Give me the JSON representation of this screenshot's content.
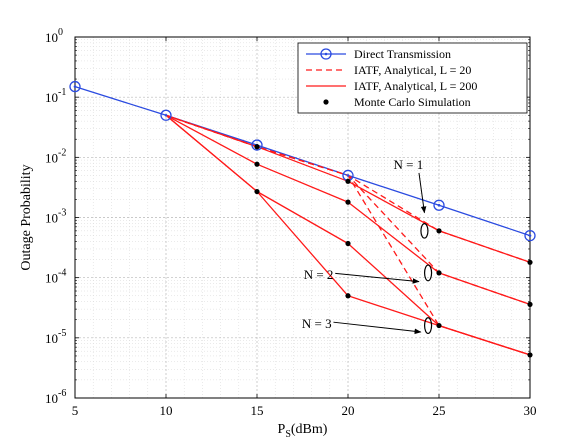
{
  "chart_data": {
    "type": "line",
    "title": "",
    "xlabel": "P",
    "xlabel_sub": "S",
    "xlabel_unit": "(dBm)",
    "ylabel": "Outage Probability",
    "x_ticks": [
      "5",
      "10",
      "15",
      "20",
      "25",
      "30"
    ],
    "y_ticks": [
      {
        "base": "10",
        "exp": "-6"
      },
      {
        "base": "10",
        "exp": "-5"
      },
      {
        "base": "10",
        "exp": "-4"
      },
      {
        "base": "10",
        "exp": "-3"
      },
      {
        "base": "10",
        "exp": "-2"
      },
      {
        "base": "10",
        "exp": "-1"
      },
      {
        "base": "10",
        "exp": "0"
      }
    ],
    "xlim": [
      5,
      30
    ],
    "ylim": [
      1e-06,
      1
    ],
    "yscale": "log",
    "grid": true,
    "legend_position": "top-right",
    "legend": [
      {
        "label": "Direct Transmission",
        "style": "direct"
      },
      {
        "label": "IATF, Analytical, L = 20",
        "style": "dashed"
      },
      {
        "label": "IATF, Analytical, L = 200",
        "style": "solid"
      },
      {
        "label": "Monte Carlo Simulation",
        "style": "dot"
      }
    ],
    "series": [
      {
        "style": "direct",
        "x": [
          5,
          10,
          15,
          20,
          25,
          30
        ],
        "y": [
          0.15,
          0.05,
          0.016,
          0.005,
          0.0016,
          0.0005
        ]
      },
      {
        "style": "dashed",
        "group": "N = 1",
        "x": [
          10,
          15,
          20,
          25,
          30
        ],
        "y": [
          0.05,
          0.015,
          0.005,
          0.0006,
          0.00018
        ]
      },
      {
        "style": "dashed",
        "group": "N = 2",
        "x": [
          10,
          15,
          20,
          25,
          30
        ],
        "y": [
          0.05,
          0.015,
          0.005,
          0.00012,
          3.6e-05
        ]
      },
      {
        "style": "dashed",
        "group": "N = 3",
        "x": [
          10,
          15,
          20,
          25,
          30
        ],
        "y": [
          0.05,
          0.015,
          0.005,
          1.6e-05,
          5.2e-06
        ]
      },
      {
        "style": "solid",
        "group": "N = 1",
        "x": [
          10,
          15,
          20,
          25,
          30
        ],
        "y": [
          0.05,
          0.015,
          0.004,
          0.0006,
          0.00018
        ]
      },
      {
        "style": "solid",
        "group": "N = 2",
        "x": [
          10,
          15,
          20,
          25,
          30
        ],
        "y": [
          0.05,
          0.0077,
          0.0018,
          0.00012,
          3.6e-05
        ]
      },
      {
        "style": "solid",
        "group": "N = 3",
        "x": [
          10,
          15,
          20,
          25,
          30
        ],
        "y": [
          0.05,
          0.0027,
          0.00037,
          1.6e-05,
          5.2e-06
        ]
      },
      {
        "style": "solid",
        "group": "N = 3 lower",
        "x": [
          10,
          15,
          20,
          25,
          30
        ],
        "y": [
          0.05,
          0.0027,
          5e-05,
          1.6e-05,
          5.2e-06
        ]
      }
    ],
    "simulation_points": [
      {
        "x": 15,
        "y": 0.015
      },
      {
        "x": 15,
        "y": 0.0077
      },
      {
        "x": 15,
        "y": 0.0027
      },
      {
        "x": 20,
        "y": 0.004
      },
      {
        "x": 20,
        "y": 0.0018
      },
      {
        "x": 20,
        "y": 0.00037
      },
      {
        "x": 20,
        "y": 5e-05
      },
      {
        "x": 25,
        "y": 0.0006
      },
      {
        "x": 25,
        "y": 0.00012
      },
      {
        "x": 25,
        "y": 1.6e-05
      },
      {
        "x": 30,
        "y": 0.00018
      },
      {
        "x": 30,
        "y": 3.6e-05
      },
      {
        "x": 30,
        "y": 5.2e-06
      }
    ],
    "annotations": [
      {
        "label": "N = 1",
        "text_at": [
          22.5,
          0.0078
        ],
        "text_anchor": "start",
        "arrow_from": [
          23.9,
          0.0055
        ],
        "arrow_to": [
          24.2,
          0.0012
        ],
        "ellipse_at": [
          24.2,
          0.0006
        ],
        "ellipse_log_half_height": 0.12
      },
      {
        "label": "N = 2",
        "text_at": [
          19.2,
          0.000115
        ],
        "text_anchor": "end",
        "arrow_from": [
          19.3,
          0.000118
        ],
        "arrow_to": [
          23.9,
          8.6e-05
        ],
        "ellipse_at": [
          24.4,
          0.00012
        ],
        "ellipse_log_half_height": 0.13
      },
      {
        "label": "N = 3",
        "text_at": [
          19.1,
          1.78e-05
        ],
        "text_anchor": "end",
        "arrow_from": [
          19.2,
          1.82e-05
        ],
        "arrow_to": [
          24.0,
          1.25e-05
        ],
        "ellipse_at": [
          24.4,
          1.6e-05
        ],
        "ellipse_log_half_height": 0.13
      }
    ]
  }
}
